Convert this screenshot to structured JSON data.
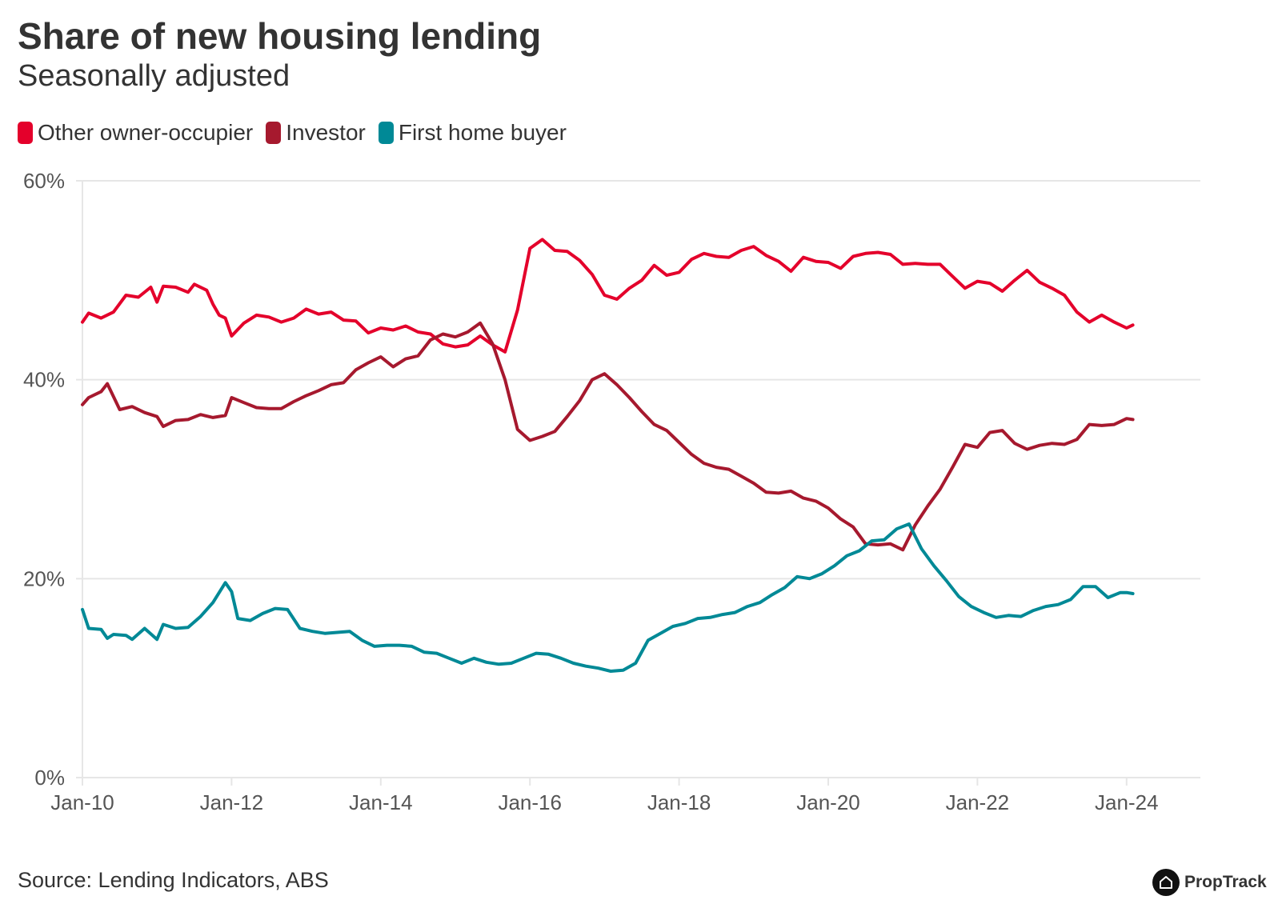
{
  "title": "Share of new housing lending",
  "subtitle": "Seasonally adjusted",
  "source": "Source: Lending Indicators, ABS",
  "brand": {
    "name": "PropTrack",
    "icon": "house-logo-icon"
  },
  "colors": {
    "other_owner_occupier": "#e4002b",
    "investor": "#a6192e",
    "first_home_buyer": "#008996",
    "grid": "#e6e6e6",
    "text": "#333333",
    "axis_text": "#555555"
  },
  "chart_data": {
    "type": "line",
    "x_start": "Jan-10",
    "x_end": "Feb-24",
    "x_ticks": [
      "Jan-10",
      "Jan-12",
      "Jan-14",
      "Jan-16",
      "Jan-18",
      "Jan-20",
      "Jan-22",
      "Jan-24"
    ],
    "y_ticks": [
      "0%",
      "20%",
      "40%",
      "60%"
    ],
    "ylim": [
      0,
      60
    ],
    "y_unit": "%",
    "grid": "horizontal",
    "legend_position": "top-left",
    "series": [
      {
        "name": "Other owner-occupier",
        "color": "#e4002b",
        "points": [
          [
            "2010-01",
            45.8
          ],
          [
            "2010-02",
            46.7
          ],
          [
            "2010-04",
            46.2
          ],
          [
            "2010-06",
            46.8
          ],
          [
            "2010-08",
            48.5
          ],
          [
            "2010-10",
            48.3
          ],
          [
            "2010-12",
            49.3
          ],
          [
            "2011-01",
            47.8
          ],
          [
            "2011-02",
            49.4
          ],
          [
            "2011-04",
            49.3
          ],
          [
            "2011-06",
            48.8
          ],
          [
            "2011-07",
            49.6
          ],
          [
            "2011-09",
            49.0
          ],
          [
            "2011-10",
            47.6
          ],
          [
            "2011-11",
            46.5
          ],
          [
            "2011-12",
            46.2
          ],
          [
            "2012-01",
            44.4
          ],
          [
            "2012-03",
            45.7
          ],
          [
            "2012-05",
            46.5
          ],
          [
            "2012-07",
            46.3
          ],
          [
            "2012-09",
            45.8
          ],
          [
            "2012-11",
            46.2
          ],
          [
            "2013-01",
            47.1
          ],
          [
            "2013-03",
            46.6
          ],
          [
            "2013-05",
            46.8
          ],
          [
            "2013-07",
            46.0
          ],
          [
            "2013-09",
            45.9
          ],
          [
            "2013-11",
            44.7
          ],
          [
            "2014-01",
            45.2
          ],
          [
            "2014-03",
            45.0
          ],
          [
            "2014-05",
            45.4
          ],
          [
            "2014-07",
            44.8
          ],
          [
            "2014-09",
            44.6
          ],
          [
            "2014-11",
            43.6
          ],
          [
            "2015-01",
            43.3
          ],
          [
            "2015-03",
            43.5
          ],
          [
            "2015-05",
            44.4
          ],
          [
            "2015-07",
            43.5
          ],
          [
            "2015-09",
            42.8
          ],
          [
            "2015-11",
            47.0
          ],
          [
            "2016-01",
            53.2
          ],
          [
            "2016-03",
            54.1
          ],
          [
            "2016-05",
            53.0
          ],
          [
            "2016-07",
            52.9
          ],
          [
            "2016-09",
            52.0
          ],
          [
            "2016-11",
            50.6
          ],
          [
            "2017-01",
            48.5
          ],
          [
            "2017-03",
            48.1
          ],
          [
            "2017-05",
            49.2
          ],
          [
            "2017-07",
            50.0
          ],
          [
            "2017-09",
            51.5
          ],
          [
            "2017-11",
            50.5
          ],
          [
            "2018-01",
            50.8
          ],
          [
            "2018-03",
            52.1
          ],
          [
            "2018-05",
            52.7
          ],
          [
            "2018-07",
            52.4
          ],
          [
            "2018-09",
            52.3
          ],
          [
            "2018-11",
            53.0
          ],
          [
            "2019-01",
            53.4
          ],
          [
            "2019-03",
            52.5
          ],
          [
            "2019-05",
            51.9
          ],
          [
            "2019-07",
            50.9
          ],
          [
            "2019-09",
            52.3
          ],
          [
            "2019-11",
            51.9
          ],
          [
            "2020-01",
            51.8
          ],
          [
            "2020-03",
            51.2
          ],
          [
            "2020-05",
            52.4
          ],
          [
            "2020-07",
            52.7
          ],
          [
            "2020-09",
            52.8
          ],
          [
            "2020-11",
            52.6
          ],
          [
            "2021-01",
            51.6
          ],
          [
            "2021-03",
            51.7
          ],
          [
            "2021-05",
            51.6
          ],
          [
            "2021-07",
            51.6
          ],
          [
            "2021-09",
            50.4
          ],
          [
            "2021-11",
            49.2
          ],
          [
            "2022-01",
            49.9
          ],
          [
            "2022-03",
            49.7
          ],
          [
            "2022-05",
            48.9
          ],
          [
            "2022-07",
            50.0
          ],
          [
            "2022-09",
            51.0
          ],
          [
            "2022-11",
            49.8
          ],
          [
            "2023-01",
            49.2
          ],
          [
            "2023-03",
            48.5
          ],
          [
            "2023-05",
            46.8
          ],
          [
            "2023-07",
            45.8
          ],
          [
            "2023-09",
            46.5
          ],
          [
            "2023-11",
            45.8
          ],
          [
            "2024-01",
            45.2
          ],
          [
            "2024-02",
            45.5
          ]
        ]
      },
      {
        "name": "Investor",
        "color": "#a6192e",
        "points": [
          [
            "2010-01",
            37.5
          ],
          [
            "2010-02",
            38.2
          ],
          [
            "2010-04",
            38.8
          ],
          [
            "2010-05",
            39.6
          ],
          [
            "2010-07",
            37.0
          ],
          [
            "2010-09",
            37.3
          ],
          [
            "2010-11",
            36.7
          ],
          [
            "2011-01",
            36.3
          ],
          [
            "2011-02",
            35.3
          ],
          [
            "2011-04",
            35.9
          ],
          [
            "2011-06",
            36.0
          ],
          [
            "2011-08",
            36.5
          ],
          [
            "2011-10",
            36.2
          ],
          [
            "2011-12",
            36.4
          ],
          [
            "2012-01",
            38.2
          ],
          [
            "2012-03",
            37.7
          ],
          [
            "2012-05",
            37.2
          ],
          [
            "2012-07",
            37.1
          ],
          [
            "2012-09",
            37.1
          ],
          [
            "2012-11",
            37.8
          ],
          [
            "2013-01",
            38.4
          ],
          [
            "2013-03",
            38.9
          ],
          [
            "2013-05",
            39.5
          ],
          [
            "2013-07",
            39.7
          ],
          [
            "2013-09",
            41.0
          ],
          [
            "2013-11",
            41.7
          ],
          [
            "2014-01",
            42.3
          ],
          [
            "2014-03",
            41.3
          ],
          [
            "2014-05",
            42.1
          ],
          [
            "2014-07",
            42.4
          ],
          [
            "2014-09",
            44.0
          ],
          [
            "2014-11",
            44.6
          ],
          [
            "2015-01",
            44.3
          ],
          [
            "2015-03",
            44.8
          ],
          [
            "2015-05",
            45.7
          ],
          [
            "2015-07",
            43.6
          ],
          [
            "2015-09",
            40.0
          ],
          [
            "2015-11",
            35.0
          ],
          [
            "2016-01",
            33.9
          ],
          [
            "2016-03",
            34.3
          ],
          [
            "2016-05",
            34.8
          ],
          [
            "2016-07",
            36.3
          ],
          [
            "2016-09",
            37.9
          ],
          [
            "2016-11",
            40.0
          ],
          [
            "2017-01",
            40.6
          ],
          [
            "2017-03",
            39.5
          ],
          [
            "2017-05",
            38.2
          ],
          [
            "2017-07",
            36.8
          ],
          [
            "2017-09",
            35.5
          ],
          [
            "2017-11",
            34.9
          ],
          [
            "2018-01",
            33.7
          ],
          [
            "2018-03",
            32.5
          ],
          [
            "2018-05",
            31.6
          ],
          [
            "2018-07",
            31.2
          ],
          [
            "2018-09",
            31.0
          ],
          [
            "2018-11",
            30.3
          ],
          [
            "2019-01",
            29.6
          ],
          [
            "2019-03",
            28.7
          ],
          [
            "2019-05",
            28.6
          ],
          [
            "2019-07",
            28.8
          ],
          [
            "2019-09",
            28.1
          ],
          [
            "2019-11",
            27.8
          ],
          [
            "2020-01",
            27.1
          ],
          [
            "2020-03",
            26.0
          ],
          [
            "2020-05",
            25.2
          ],
          [
            "2020-07",
            23.5
          ],
          [
            "2020-09",
            23.4
          ],
          [
            "2020-11",
            23.5
          ],
          [
            "2021-01",
            22.9
          ],
          [
            "2021-03",
            25.4
          ],
          [
            "2021-05",
            27.3
          ],
          [
            "2021-07",
            29.0
          ],
          [
            "2021-09",
            31.2
          ],
          [
            "2021-11",
            33.5
          ],
          [
            "2022-01",
            33.2
          ],
          [
            "2022-03",
            34.7
          ],
          [
            "2022-05",
            34.9
          ],
          [
            "2022-07",
            33.6
          ],
          [
            "2022-09",
            33.0
          ],
          [
            "2022-11",
            33.4
          ],
          [
            "2023-01",
            33.6
          ],
          [
            "2023-03",
            33.5
          ],
          [
            "2023-05",
            34.0
          ],
          [
            "2023-07",
            35.5
          ],
          [
            "2023-09",
            35.4
          ],
          [
            "2023-11",
            35.5
          ],
          [
            "2024-01",
            36.1
          ],
          [
            "2024-02",
            36.0
          ]
        ]
      },
      {
        "name": "First home buyer",
        "color": "#008996",
        "points": [
          [
            "2010-01",
            16.9
          ],
          [
            "2010-02",
            15.0
          ],
          [
            "2010-04",
            14.9
          ],
          [
            "2010-05",
            14.0
          ],
          [
            "2010-06",
            14.4
          ],
          [
            "2010-08",
            14.3
          ],
          [
            "2010-09",
            13.9
          ],
          [
            "2010-11",
            15.0
          ],
          [
            "2011-01",
            13.9
          ],
          [
            "2011-02",
            15.4
          ],
          [
            "2011-04",
            15.0
          ],
          [
            "2011-06",
            15.1
          ],
          [
            "2011-08",
            16.2
          ],
          [
            "2011-10",
            17.6
          ],
          [
            "2011-12",
            19.6
          ],
          [
            "2012-01",
            18.7
          ],
          [
            "2012-02",
            16.0
          ],
          [
            "2012-04",
            15.8
          ],
          [
            "2012-06",
            16.5
          ],
          [
            "2012-08",
            17.0
          ],
          [
            "2012-10",
            16.9
          ],
          [
            "2012-12",
            15.0
          ],
          [
            "2013-02",
            14.7
          ],
          [
            "2013-04",
            14.5
          ],
          [
            "2013-06",
            14.6
          ],
          [
            "2013-08",
            14.7
          ],
          [
            "2013-10",
            13.8
          ],
          [
            "2013-12",
            13.2
          ],
          [
            "2014-02",
            13.3
          ],
          [
            "2014-04",
            13.3
          ],
          [
            "2014-06",
            13.2
          ],
          [
            "2014-08",
            12.6
          ],
          [
            "2014-10",
            12.5
          ],
          [
            "2014-12",
            12.0
          ],
          [
            "2015-02",
            11.5
          ],
          [
            "2015-04",
            12.0
          ],
          [
            "2015-06",
            11.6
          ],
          [
            "2015-08",
            11.4
          ],
          [
            "2015-10",
            11.5
          ],
          [
            "2015-12",
            12.0
          ],
          [
            "2016-02",
            12.5
          ],
          [
            "2016-04",
            12.4
          ],
          [
            "2016-06",
            12.0
          ],
          [
            "2016-08",
            11.5
          ],
          [
            "2016-10",
            11.2
          ],
          [
            "2016-12",
            11.0
          ],
          [
            "2017-02",
            10.7
          ],
          [
            "2017-04",
            10.8
          ],
          [
            "2017-06",
            11.5
          ],
          [
            "2017-08",
            13.8
          ],
          [
            "2017-10",
            14.5
          ],
          [
            "2017-12",
            15.2
          ],
          [
            "2018-02",
            15.5
          ],
          [
            "2018-04",
            16.0
          ],
          [
            "2018-06",
            16.1
          ],
          [
            "2018-08",
            16.4
          ],
          [
            "2018-10",
            16.6
          ],
          [
            "2018-12",
            17.2
          ],
          [
            "2019-02",
            17.6
          ],
          [
            "2019-04",
            18.4
          ],
          [
            "2019-06",
            19.1
          ],
          [
            "2019-08",
            20.2
          ],
          [
            "2019-10",
            20.0
          ],
          [
            "2019-12",
            20.5
          ],
          [
            "2020-02",
            21.3
          ],
          [
            "2020-04",
            22.3
          ],
          [
            "2020-06",
            22.8
          ],
          [
            "2020-08",
            23.8
          ],
          [
            "2020-10",
            23.9
          ],
          [
            "2020-12",
            25.0
          ],
          [
            "2021-02",
            25.5
          ],
          [
            "2021-04",
            23.0
          ],
          [
            "2021-06",
            21.3
          ],
          [
            "2021-08",
            19.8
          ],
          [
            "2021-10",
            18.2
          ],
          [
            "2021-12",
            17.2
          ],
          [
            "2022-02",
            16.6
          ],
          [
            "2022-04",
            16.1
          ],
          [
            "2022-06",
            16.3
          ],
          [
            "2022-08",
            16.2
          ],
          [
            "2022-10",
            16.8
          ],
          [
            "2022-12",
            17.2
          ],
          [
            "2023-02",
            17.4
          ],
          [
            "2023-04",
            17.9
          ],
          [
            "2023-06",
            19.2
          ],
          [
            "2023-08",
            19.2
          ],
          [
            "2023-10",
            18.1
          ],
          [
            "2023-12",
            18.6
          ],
          [
            "2024-01",
            18.6
          ],
          [
            "2024-02",
            18.5
          ]
        ]
      }
    ]
  }
}
